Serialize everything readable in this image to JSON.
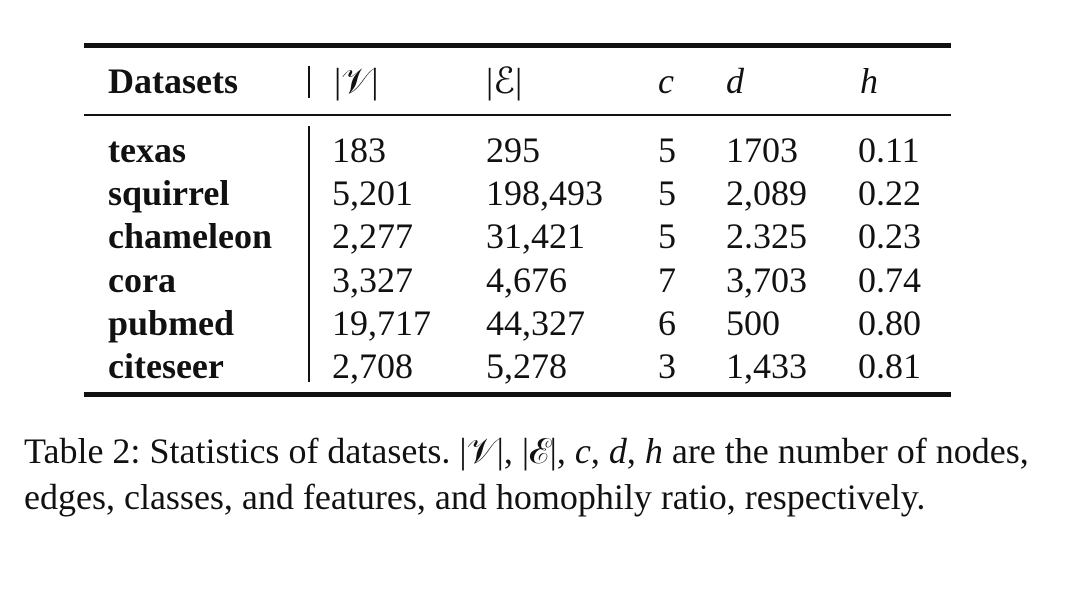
{
  "table": {
    "header": {
      "datasets": "Datasets",
      "nodes": "|𝒱|",
      "edges": "|ℰ|",
      "classes": "c",
      "features": "d",
      "homophily": "h"
    },
    "rows": [
      {
        "name": "texas",
        "nodes": "183",
        "edges": "295",
        "classes": "5",
        "features": "1703",
        "homophily": "0.11"
      },
      {
        "name": "squirrel",
        "nodes": "5,201",
        "edges": "198,493",
        "classes": "5",
        "features": "2,089",
        "homophily": "0.22"
      },
      {
        "name": "chameleon",
        "nodes": "2,277",
        "edges": "31,421",
        "classes": "5",
        "features": "2.325",
        "homophily": "0.23"
      },
      {
        "name": "cora",
        "nodes": "3,327",
        "edges": "4,676",
        "classes": "7",
        "features": "3,703",
        "homophily": "0.74"
      },
      {
        "name": "pubmed",
        "nodes": "19,717",
        "edges": "44,327",
        "classes": "6",
        "features": "500",
        "homophily": "0.80"
      },
      {
        "name": "citeseer",
        "nodes": "2,708",
        "edges": "5,278",
        "classes": "3",
        "features": "1,433",
        "homophily": "0.81"
      }
    ]
  },
  "caption": {
    "prefix": "Table 2: Statistics of datasets. ",
    "v": "|𝒱|",
    "sep1": ", ",
    "e": "|ℰ|",
    "sep2": ", ",
    "c": "c",
    "sep3": ", ",
    "d": "d",
    "sep4": ", ",
    "h": "h",
    "suffix": " are the number of nodes, edges, classes, and features, and homophily ratio, respectively."
  }
}
